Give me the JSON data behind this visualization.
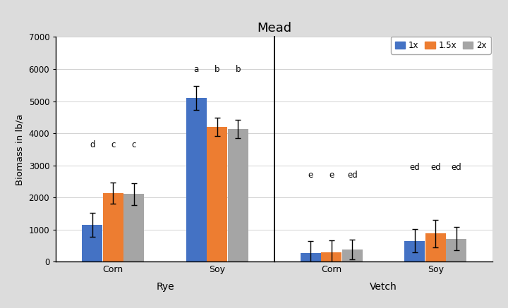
{
  "title": "Mead",
  "ylabel": "Biomass in lb/a",
  "ylim": [
    0,
    7000
  ],
  "yticks": [
    0,
    1000,
    2000,
    3000,
    4000,
    5000,
    6000,
    7000
  ],
  "groups": [
    "Rye",
    "Vetch"
  ],
  "subgroups": [
    "Corn",
    "Soy"
  ],
  "series": [
    "1x",
    "1.5x",
    "2x"
  ],
  "colors": [
    "#4472C4",
    "#ED7D31",
    "#A5A5A5"
  ],
  "bar_width": 0.2,
  "values": {
    "Rye": {
      "Corn": [
        1150,
        2140,
        2110
      ],
      "Soy": [
        5100,
        4200,
        4140
      ]
    },
    "Vetch": {
      "Corn": [
        270,
        295,
        390
      ],
      "Soy": [
        650,
        880,
        720
      ]
    }
  },
  "errors": {
    "Rye": {
      "Corn": [
        380,
        320,
        340
      ],
      "Soy": [
        370,
        280,
        290
      ]
    },
    "Vetch": {
      "Corn": [
        380,
        380,
        310
      ],
      "Soy": [
        360,
        430,
        370
      ]
    }
  },
  "sig_labels": {
    "Rye": {
      "Corn": [
        "d",
        "c",
        "c"
      ],
      "Soy": [
        "a",
        "b",
        "b"
      ]
    },
    "Vetch": {
      "Corn": [
        "e",
        "e",
        "ed"
      ],
      "Soy": [
        "ed",
        "ed",
        "ed"
      ]
    }
  },
  "sig_label_y": {
    "Rye": {
      "Corn": 3500,
      "Soy": 5850
    },
    "Vetch": {
      "Corn": 2550,
      "Soy": 2800
    }
  },
  "fig_bg": "#DCDCDC",
  "plot_bg": "#FFFFFF",
  "border_color": "#808080"
}
